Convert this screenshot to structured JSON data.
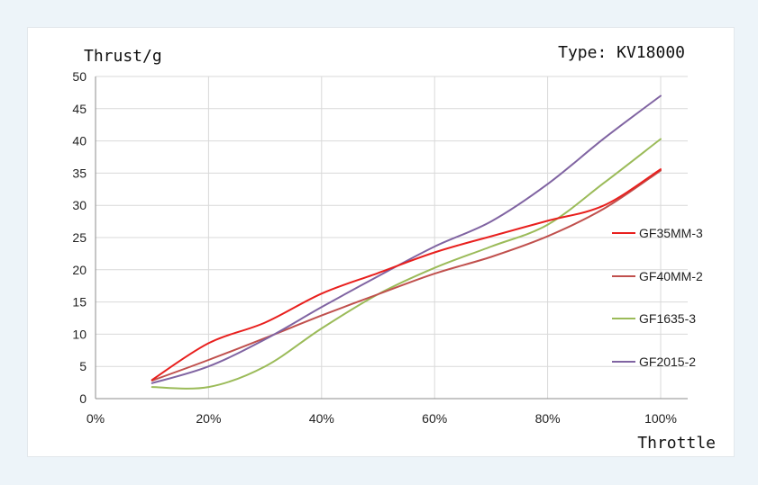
{
  "chart_data": {
    "type": "line",
    "title": "Type: KV18000",
    "ylabel": "Thrust/g",
    "xlabel": "Throttle",
    "xlim": [
      0,
      100
    ],
    "ylim": [
      0,
      50
    ],
    "x_ticks": [
      "0%",
      "20%",
      "40%",
      "60%",
      "80%",
      "100%"
    ],
    "y_ticks": [
      "0",
      "5",
      "10",
      "15",
      "20",
      "25",
      "30",
      "35",
      "40",
      "45",
      "50"
    ],
    "grid": true,
    "legend_position": "right",
    "x": [
      10,
      20,
      30,
      40,
      50,
      60,
      70,
      80,
      90,
      100
    ],
    "series": [
      {
        "name": "GF35MM-3",
        "color": "#e8201e",
        "values": [
          2.9,
          8.6,
          11.8,
          16.3,
          19.5,
          22.7,
          25.2,
          27.6,
          30.0,
          35.6
        ]
      },
      {
        "name": "GF40MM-2",
        "color": "#c0504d",
        "values": [
          2.8,
          6.0,
          9.4,
          12.9,
          16.2,
          19.4,
          22.0,
          25.2,
          29.5,
          35.4
        ]
      },
      {
        "name": "GF1635-3",
        "color": "#9bbb59",
        "values": [
          1.8,
          1.8,
          5.0,
          10.9,
          16.2,
          20.3,
          23.6,
          27.0,
          33.5,
          40.3
        ]
      },
      {
        "name": "GF2015-2",
        "color": "#8064a2",
        "values": [
          2.4,
          5.0,
          9.2,
          14.2,
          19.0,
          23.6,
          27.5,
          33.3,
          40.4,
          47.0
        ]
      }
    ]
  }
}
